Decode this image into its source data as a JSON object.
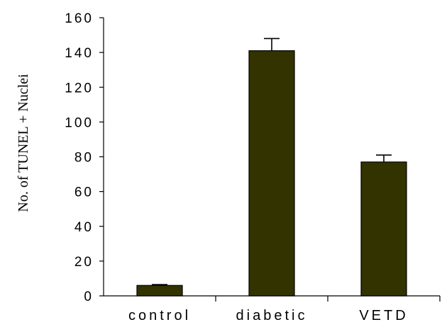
{
  "chart_data": {
    "type": "bar",
    "title": "",
    "xlabel": "",
    "ylabel": "No. of TUNEL + Nuclei",
    "categories": [
      "control",
      "diabetic",
      "VETD"
    ],
    "values": [
      6,
      141,
      77
    ],
    "errors": [
      0.5,
      7,
      4
    ],
    "ylim": [
      0,
      160
    ],
    "yticks": [
      0,
      20,
      40,
      60,
      80,
      100,
      120,
      140,
      160
    ],
    "yticklabels": [
      "0",
      "20",
      "40",
      "60",
      "80",
      "100",
      "120",
      "140",
      "160"
    ],
    "grid": false,
    "legend": "none",
    "colors": {
      "bar_fill": "#333300",
      "bar_stroke": "#000000",
      "axis": "#000000"
    }
  }
}
